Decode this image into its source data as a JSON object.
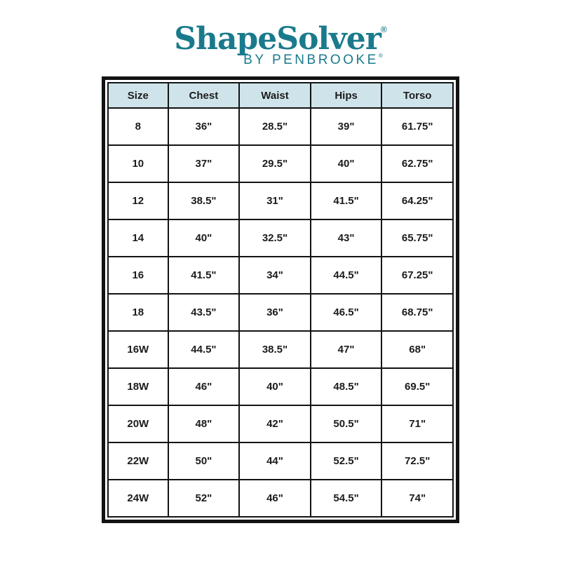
{
  "logo": {
    "title": "ShapeSolver",
    "registered": "®",
    "subtitle": "BY PENBROOKE",
    "subtitle_registered": "®"
  },
  "chart_data": {
    "type": "table",
    "columns": [
      "Size",
      "Chest",
      "Waist",
      "Hips",
      "Torso"
    ],
    "rows": [
      [
        "8",
        "36\"",
        "28.5\"",
        "39\"",
        "61.75\""
      ],
      [
        "10",
        "37\"",
        "29.5\"",
        "40\"",
        "62.75\""
      ],
      [
        "12",
        "38.5\"",
        "31\"",
        "41.5\"",
        "64.25\""
      ],
      [
        "14",
        "40\"",
        "32.5\"",
        "43\"",
        "65.75\""
      ],
      [
        "16",
        "41.5\"",
        "34\"",
        "44.5\"",
        "67.25\""
      ],
      [
        "18",
        "43.5\"",
        "36\"",
        "46.5\"",
        "68.75\""
      ],
      [
        "16W",
        "44.5\"",
        "38.5\"",
        "47\"",
        "68\""
      ],
      [
        "18W",
        "46\"",
        "40\"",
        "48.5\"",
        "69.5\""
      ],
      [
        "20W",
        "48\"",
        "42\"",
        "50.5\"",
        "71\""
      ],
      [
        "22W",
        "50\"",
        "44\"",
        "52.5\"",
        "72.5\""
      ],
      [
        "24W",
        "52\"",
        "46\"",
        "54.5\"",
        "74\""
      ]
    ]
  },
  "colors": {
    "brand_teal": "#1a7a8c",
    "header_bg": "#cfe4ea",
    "border": "#131313",
    "text": "#1c1c1c"
  }
}
